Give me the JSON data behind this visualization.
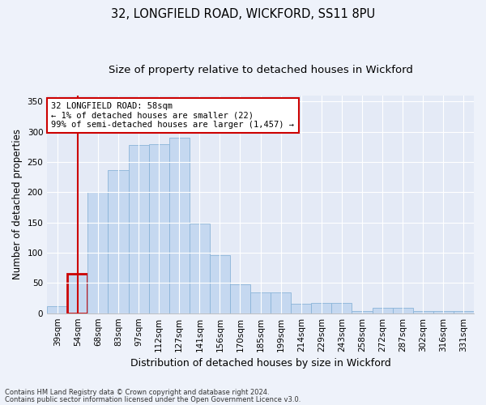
{
  "title1": "32, LONGFIELD ROAD, WICKFORD, SS11 8PU",
  "title2": "Size of property relative to detached houses in Wickford",
  "xlabel": "Distribution of detached houses by size in Wickford",
  "ylabel": "Number of detached properties",
  "categories": [
    "39sqm",
    "54sqm",
    "68sqm",
    "83sqm",
    "97sqm",
    "112sqm",
    "127sqm",
    "141sqm",
    "156sqm",
    "170sqm",
    "185sqm",
    "199sqm",
    "214sqm",
    "229sqm",
    "243sqm",
    "258sqm",
    "272sqm",
    "287sqm",
    "302sqm",
    "316sqm",
    "331sqm"
  ],
  "values": [
    12,
    65,
    200,
    237,
    278,
    280,
    290,
    148,
    96,
    48,
    34,
    34,
    15,
    17,
    17,
    4,
    9,
    9,
    3,
    3,
    3
  ],
  "bar_color": "#c5d8f0",
  "bar_edge_color": "#8ab4d8",
  "highlight_idx": 1,
  "highlight_color": "#cc0000",
  "annotation_title": "32 LONGFIELD ROAD: 58sqm",
  "annotation_line1": "← 1% of detached houses are smaller (22)",
  "annotation_line2": "99% of semi-detached houses are larger (1,457) →",
  "annotation_box_color": "#cc0000",
  "footnote1": "Contains HM Land Registry data © Crown copyright and database right 2024.",
  "footnote2": "Contains public sector information licensed under the Open Government Licence v3.0.",
  "ylim": [
    0,
    360
  ],
  "yticks": [
    0,
    50,
    100,
    150,
    200,
    250,
    300,
    350
  ],
  "bg_color": "#eef2fa",
  "plot_bg_color": "#e4eaf6",
  "grid_color": "#ffffff",
  "title1_fontsize": 10.5,
  "title2_fontsize": 9.5,
  "tick_fontsize": 7.5,
  "ylabel_fontsize": 8.5,
  "xlabel_fontsize": 9
}
